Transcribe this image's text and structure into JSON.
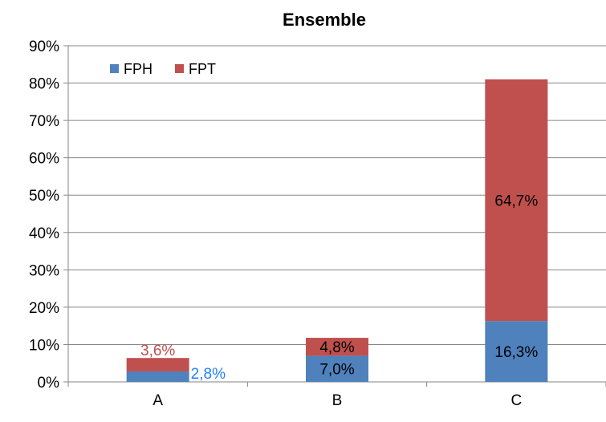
{
  "chart_data": {
    "type": "bar",
    "stacked": true,
    "title": "Ensemble",
    "categories": [
      "A",
      "B",
      "C"
    ],
    "series": [
      {
        "name": "FPH",
        "values": [
          2.8,
          7.0,
          16.3
        ],
        "labels": [
          "2,8%",
          "7,0%",
          "16,3%"
        ],
        "color": "#4f81bd"
      },
      {
        "name": "FPT",
        "values": [
          3.6,
          4.8,
          64.7
        ],
        "labels": [
          "3,6%",
          "4,8%",
          "64,7%"
        ],
        "color": "#c0504d"
      }
    ],
    "ylim": [
      0,
      90
    ],
    "yticks": [
      "0%",
      "10%",
      "20%",
      "30%",
      "40%",
      "50%",
      "60%",
      "70%",
      "80%",
      "90%"
    ],
    "grid": true,
    "legend_position": "top-left",
    "label_colors": {
      "A": {
        "FPH": "#1f7fff",
        "FPT": "#c0504d"
      },
      "default": "#000000"
    }
  }
}
